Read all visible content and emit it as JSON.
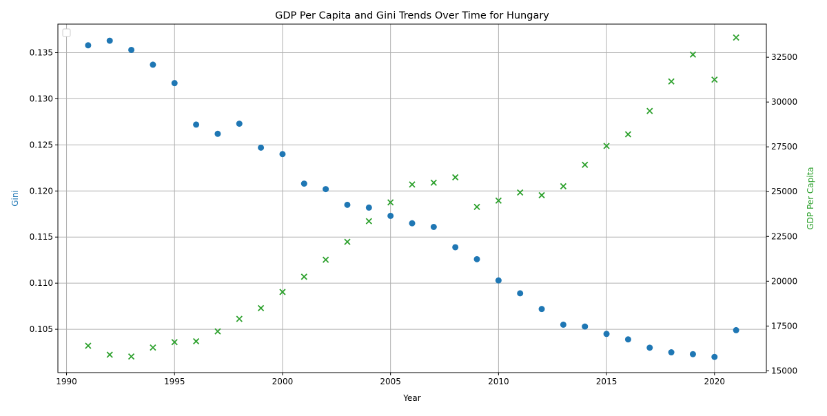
{
  "chart_data": {
    "type": "scatter",
    "title": "GDP Per Capita and Gini Trends Over Time for Hungary",
    "xlabel": "Year",
    "ylabel_left": "Gini",
    "ylabel_right": "GDP Per Capita",
    "xlim": [
      1989.6,
      2022.4
    ],
    "ylim_left": [
      0.1003,
      0.1381
    ],
    "ylim_right": [
      14900,
      34350
    ],
    "x_ticks": [
      1990,
      1995,
      2000,
      2005,
      2010,
      2015,
      2020
    ],
    "y_left_ticks": [
      0.105,
      0.11,
      0.115,
      0.12,
      0.125,
      0.13,
      0.135
    ],
    "y_right_ticks": [
      15000,
      17500,
      20000,
      22500,
      25000,
      27500,
      30000,
      32500
    ],
    "grid": true,
    "legend": "top-left, empty",
    "colors": {
      "gini": "#1f77b4",
      "gdp": "#2ca02c"
    },
    "x": [
      1991,
      1992,
      1993,
      1994,
      1995,
      1996,
      1997,
      1998,
      1999,
      2000,
      2001,
      2002,
      2003,
      2004,
      2005,
      2006,
      2007,
      2008,
      2009,
      2010,
      2011,
      2012,
      2013,
      2014,
      2015,
      2016,
      2017,
      2018,
      2019,
      2020,
      2021
    ],
    "series": [
      {
        "name": "Gini",
        "axis": "left",
        "marker": "circle",
        "values": [
          0.1358,
          0.1363,
          0.1353,
          0.1337,
          0.1317,
          0.1272,
          0.1262,
          0.1273,
          0.1247,
          0.124,
          0.1208,
          0.1202,
          0.1185,
          0.1182,
          0.1173,
          0.1165,
          0.1161,
          0.1139,
          0.1126,
          0.1103,
          0.1089,
          0.1072,
          0.1055,
          0.1053,
          0.1045,
          0.1039,
          0.103,
          0.1025,
          0.1023,
          0.102,
          0.1049
        ]
      },
      {
        "name": "GDP Per Capita",
        "axis": "right",
        "marker": "x",
        "values": [
          16400,
          15900,
          15800,
          16300,
          16600,
          16650,
          17200,
          17900,
          18500,
          19400,
          20250,
          21200,
          22200,
          23350,
          24400,
          25400,
          25500,
          25800,
          24150,
          24500,
          24950,
          24800,
          25300,
          26500,
          27550,
          28200,
          29500,
          31150,
          32650,
          31250,
          33600
        ]
      }
    ]
  }
}
